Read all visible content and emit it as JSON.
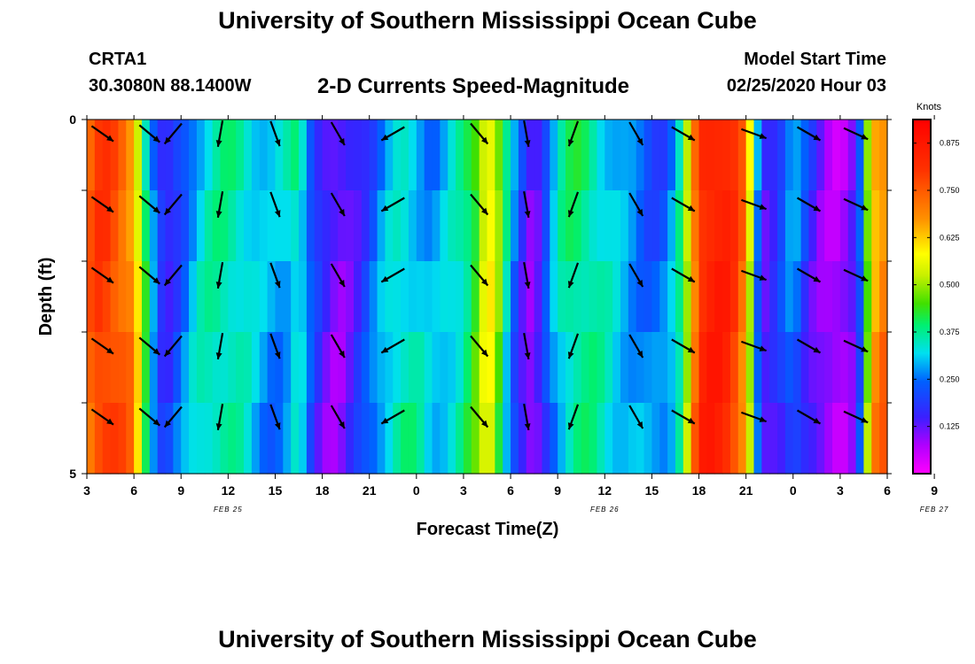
{
  "header": {
    "title": "University of Southern Mississippi Ocean Cube",
    "station_id": "CRTA1",
    "station_coords": "30.3080N 88.1400W",
    "model_start_label": "Model Start Time",
    "model_start_value": "02/25/2020 Hour 03"
  },
  "footer": {
    "title": "University of Southern Mississippi Ocean Cube"
  },
  "chart_data": {
    "type": "heatmap",
    "title": "2-D Currents Speed-Magnitude",
    "xlabel": "Forecast Time(Z)",
    "ylabel": "Depth (ft)",
    "ylim": [
      0,
      5
    ],
    "y_tick_labels": [
      "0",
      "5"
    ],
    "x_hours": [
      3,
      54
    ],
    "x_tick_labels": [
      "3",
      "6",
      "9",
      "12",
      "15",
      "18",
      "21",
      "0",
      "3",
      "6",
      "9",
      "12",
      "15",
      "18",
      "21",
      "0",
      "3",
      "6",
      "9"
    ],
    "date_labels": [
      {
        "text": "FEB 25",
        "hour": 12
      },
      {
        "text": "FEB 26",
        "hour": 36
      },
      {
        "text": "FEB 27",
        "hour": 57
      }
    ],
    "colorbar": {
      "unit": "Knots",
      "range": [
        0,
        0.9375
      ],
      "tick_labels": [
        "0.875",
        "0.750",
        "0.625",
        "0.500",
        "0.375",
        "0.250",
        "0.125"
      ],
      "tick_values": [
        0.875,
        0.75,
        0.625,
        0.5,
        0.375,
        0.25,
        0.125
      ]
    },
    "depth_levels": [
      0,
      1,
      2,
      3,
      4,
      5
    ],
    "speed_profile_by_hour": [
      {
        "hour": 3,
        "speed": 0.72
      },
      {
        "hour": 3.5,
        "speed": 0.78
      },
      {
        "hour": 4,
        "speed": 0.8
      },
      {
        "hour": 5,
        "speed": 0.74
      },
      {
        "hour": 6,
        "speed": 0.66
      },
      {
        "hour": 6.5,
        "speed": 0.45
      },
      {
        "hour": 7,
        "speed": 0.3
      },
      {
        "hour": 7.5,
        "speed": 0.18
      },
      {
        "hour": 8,
        "speed": 0.12
      },
      {
        "hour": 9,
        "speed": 0.2
      },
      {
        "hour": 10,
        "speed": 0.3
      },
      {
        "hour": 11,
        "speed": 0.35
      },
      {
        "hour": 12,
        "speed": 0.37
      },
      {
        "hour": 13,
        "speed": 0.36
      },
      {
        "hour": 14,
        "speed": 0.32
      },
      {
        "hour": 15,
        "speed": 0.3
      },
      {
        "hour": 16,
        "speed": 0.34
      },
      {
        "hour": 16.5,
        "speed": 0.4
      },
      {
        "hour": 17,
        "speed": 0.28
      },
      {
        "hour": 18,
        "speed": 0.16
      },
      {
        "hour": 19,
        "speed": 0.1
      },
      {
        "hour": 20,
        "speed": 0.14
      },
      {
        "hour": 21,
        "speed": 0.2
      },
      {
        "hour": 22,
        "speed": 0.28
      },
      {
        "hour": 23,
        "speed": 0.32
      },
      {
        "hour": 24,
        "speed": 0.3
      },
      {
        "hour": 25,
        "speed": 0.25
      },
      {
        "hour": 26,
        "speed": 0.3
      },
      {
        "hour": 27,
        "speed": 0.36
      },
      {
        "hour": 28,
        "speed": 0.48
      },
      {
        "hour": 28.5,
        "speed": 0.62
      },
      {
        "hour": 29,
        "speed": 0.55
      },
      {
        "hour": 30,
        "speed": 0.3
      },
      {
        "hour": 31,
        "speed": 0.15
      },
      {
        "hour": 31.5,
        "speed": 0.12
      },
      {
        "hour": 32,
        "speed": 0.2
      },
      {
        "hour": 33,
        "speed": 0.35
      },
      {
        "hour": 34,
        "speed": 0.4
      },
      {
        "hour": 35,
        "speed": 0.38
      },
      {
        "hour": 36,
        "speed": 0.33
      },
      {
        "hour": 37,
        "speed": 0.28
      },
      {
        "hour": 38,
        "speed": 0.24
      },
      {
        "hour": 39,
        "speed": 0.2
      },
      {
        "hour": 40,
        "speed": 0.22
      },
      {
        "hour": 41,
        "speed": 0.38
      },
      {
        "hour": 41.5,
        "speed": 0.6
      },
      {
        "hour": 42,
        "speed": 0.8
      },
      {
        "hour": 43,
        "speed": 0.86
      },
      {
        "hour": 44,
        "speed": 0.84
      },
      {
        "hour": 45,
        "speed": 0.7
      },
      {
        "hour": 45.5,
        "speed": 0.4
      },
      {
        "hour": 46,
        "speed": 0.15
      },
      {
        "hour": 47,
        "speed": 0.2
      },
      {
        "hour": 48,
        "speed": 0.3
      },
      {
        "hour": 49,
        "speed": 0.18
      },
      {
        "hour": 50,
        "speed": 0.1
      },
      {
        "hour": 51,
        "speed": 0.06
      },
      {
        "hour": 52,
        "speed": 0.12
      },
      {
        "hour": 52.5,
        "speed": 0.3
      },
      {
        "hour": 53,
        "speed": 0.62
      },
      {
        "hour": 54,
        "speed": 0.7
      }
    ],
    "vectors_by_hour": [
      {
        "hour": 4,
        "angle": 35
      },
      {
        "hour": 7,
        "angle": 40
      },
      {
        "hour": 8.5,
        "angle": 130
      },
      {
        "hour": 11.5,
        "angle": 100
      },
      {
        "hour": 15,
        "angle": 70
      },
      {
        "hour": 19,
        "angle": 60
      },
      {
        "hour": 22.5,
        "angle": 150
      },
      {
        "hour": 28,
        "angle": 50
      },
      {
        "hour": 31,
        "angle": 80
      },
      {
        "hour": 34,
        "angle": 110
      },
      {
        "hour": 38,
        "angle": 60
      },
      {
        "hour": 41,
        "angle": 30
      },
      {
        "hour": 45.5,
        "angle": 20
      },
      {
        "hour": 49,
        "angle": 30
      },
      {
        "hour": 52,
        "angle": 25
      }
    ]
  }
}
